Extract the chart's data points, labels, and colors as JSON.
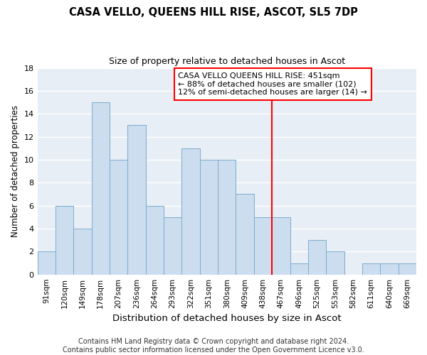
{
  "title": "CASA VELLO, QUEENS HILL RISE, ASCOT, SL5 7DP",
  "subtitle": "Size of property relative to detached houses in Ascot",
  "xlabel": "Distribution of detached houses by size in Ascot",
  "ylabel": "Number of detached properties",
  "categories": [
    "91sqm",
    "120sqm",
    "149sqm",
    "178sqm",
    "207sqm",
    "236sqm",
    "264sqm",
    "293sqm",
    "322sqm",
    "351sqm",
    "380sqm",
    "409sqm",
    "438sqm",
    "467sqm",
    "496sqm",
    "525sqm",
    "553sqm",
    "582sqm",
    "611sqm",
    "640sqm",
    "669sqm"
  ],
  "values": [
    2,
    6,
    4,
    15,
    10,
    13,
    6,
    5,
    11,
    10,
    10,
    7,
    5,
    5,
    1,
    3,
    2,
    0,
    1,
    1,
    1
  ],
  "bar_color": "#ccddef",
  "bar_edgecolor": "#7aadcc",
  "ylim": [
    0,
    18
  ],
  "yticks": [
    0,
    2,
    4,
    6,
    8,
    10,
    12,
    14,
    16,
    18
  ],
  "redline_index": 12,
  "annotation_line1": "CASA VELLO QUEENS HILL RISE: 451sqm",
  "annotation_line2": "← 88% of detached houses are smaller (102)",
  "annotation_line3": "12% of semi-detached houses are larger (14) →",
  "footer_line1": "Contains HM Land Registry data © Crown copyright and database right 2024.",
  "footer_line2": "Contains public sector information licensed under the Open Government Licence v3.0.",
  "bg_color": "#ffffff",
  "plot_bg_color": "#e8eef5",
  "grid_color": "#ffffff",
  "title_fontsize": 10.5,
  "subtitle_fontsize": 9,
  "ylabel_fontsize": 8.5,
  "xlabel_fontsize": 9.5,
  "tick_fontsize": 7.5,
  "annotation_fontsize": 8,
  "footer_fontsize": 7
}
